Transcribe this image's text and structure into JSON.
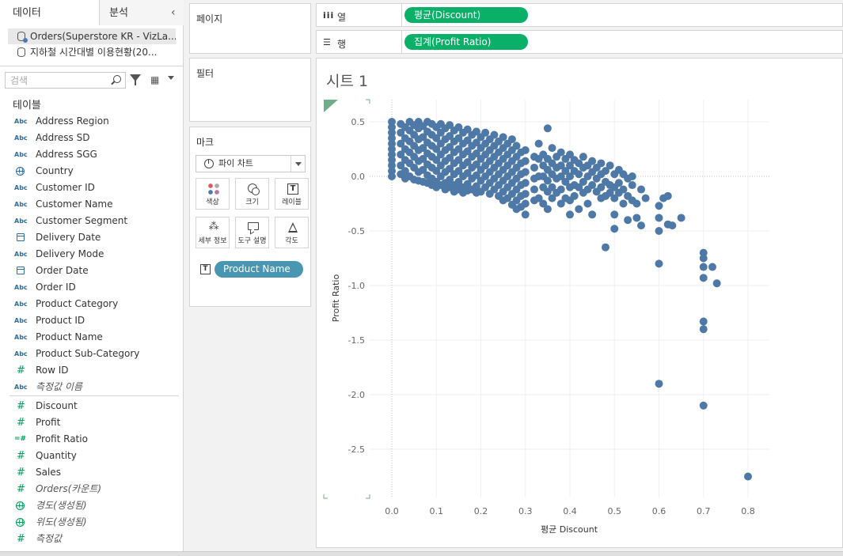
{
  "data_pane": {
    "tab_data": "데이터",
    "tab_analysis": "분석",
    "sources": [
      {
        "name": "Orders(Superstore KR - VizLa..."
      },
      {
        "name": "지하철 시간대별 이용현황(20..."
      }
    ],
    "search_placeholder": "검색",
    "table_title": "테이블",
    "fields": [
      {
        "type": "Abc",
        "name": "Address Region"
      },
      {
        "type": "Abc",
        "name": "Address SD"
      },
      {
        "type": "Abc",
        "name": "Address SGG"
      },
      {
        "type": "globe",
        "name": "Country"
      },
      {
        "type": "Abc",
        "name": "Customer ID"
      },
      {
        "type": "Abc",
        "name": "Customer Name"
      },
      {
        "type": "Abc",
        "name": "Customer Segment"
      },
      {
        "type": "date",
        "name": "Delivery Date"
      },
      {
        "type": "Abc",
        "name": "Delivery Mode"
      },
      {
        "type": "date",
        "name": "Order Date"
      },
      {
        "type": "Abc",
        "name": "Order ID"
      },
      {
        "type": "Abc",
        "name": "Product Category"
      },
      {
        "type": "Abc",
        "name": "Product ID"
      },
      {
        "type": "Abc",
        "name": "Product Name"
      },
      {
        "type": "Abc",
        "name": "Product Sub-Category"
      },
      {
        "type": "#",
        "name": "Row ID"
      },
      {
        "type": "Abc",
        "name": "측정값 이름",
        "italic": true
      },
      {
        "type": "#",
        "name": "Discount"
      },
      {
        "type": "#",
        "name": "Profit"
      },
      {
        "type": "calc",
        "name": "Profit Ratio"
      },
      {
        "type": "#",
        "name": "Quantity"
      },
      {
        "type": "#",
        "name": "Sales"
      },
      {
        "type": "#",
        "name": "Orders(카운트)",
        "italic": true
      },
      {
        "type": "globe-green",
        "name": "경도(생성됨)",
        "italic": true
      },
      {
        "type": "globe-green",
        "name": "위도(생성됨)",
        "italic": true
      },
      {
        "type": "#",
        "name": "측정값",
        "italic": true
      }
    ]
  },
  "pages_title": "페이지",
  "filters_title": "필터",
  "marks": {
    "title": "마크",
    "mark_type": "파이 차트",
    "buttons": [
      "색상",
      "크기",
      "레이블",
      "세부 정보",
      "도구 설명",
      "각도"
    ],
    "pill_label": "Product Name"
  },
  "columns_shelf": {
    "label": "열",
    "pill": "평균(Discount)"
  },
  "rows_shelf": {
    "label": "행",
    "pill": "집계(Profit Ratio)"
  },
  "sheet_title": "시트 1",
  "colors": {
    "point": "#4e79a7",
    "shelf_pill": "#0ab068",
    "mark_pill": "#4996b2"
  },
  "chart_data": {
    "type": "scatter",
    "title": "",
    "xlabel": "평균 Discount",
    "ylabel": "Profit Ratio",
    "xlim": [
      -0.03,
      0.85
    ],
    "ylim": [
      -2.95,
      0.55
    ],
    "xticks": [
      "0.0",
      "0.1",
      "0.2",
      "0.3",
      "0.4",
      "0.5",
      "0.6",
      "0.7",
      "0.8"
    ],
    "yticks": [
      "0.5",
      "0.0",
      "-0.5",
      "-1.0",
      "-1.5",
      "-2.0",
      "-2.5"
    ],
    "xtick_values": [
      0,
      0.1,
      0.2,
      0.3,
      0.4,
      0.5,
      0.6,
      0.7,
      0.8
    ],
    "ytick_values": [
      0.5,
      0,
      -0.5,
      -1.0,
      -1.5,
      -2.0,
      -2.5
    ],
    "points": [
      [
        0.0,
        0.5
      ],
      [
        0.0,
        0.45
      ],
      [
        0.0,
        0.4
      ],
      [
        0.0,
        0.35
      ],
      [
        0.0,
        0.3
      ],
      [
        0.0,
        0.25
      ],
      [
        0.0,
        0.2
      ],
      [
        0.0,
        0.15
      ],
      [
        0.0,
        0.1
      ],
      [
        0.0,
        0.05
      ],
      [
        0.0,
        0.0
      ],
      [
        0.02,
        0.48
      ],
      [
        0.02,
        0.4
      ],
      [
        0.02,
        0.3
      ],
      [
        0.02,
        0.2
      ],
      [
        0.02,
        0.1
      ],
      [
        0.02,
        0.02
      ],
      [
        0.03,
        0.45
      ],
      [
        0.03,
        0.35
      ],
      [
        0.03,
        0.25
      ],
      [
        0.03,
        0.15
      ],
      [
        0.03,
        0.05
      ],
      [
        0.03,
        -0.02
      ],
      [
        0.04,
        0.5
      ],
      [
        0.04,
        0.42
      ],
      [
        0.04,
        0.32
      ],
      [
        0.04,
        0.22
      ],
      [
        0.04,
        0.12
      ],
      [
        0.04,
        0.0
      ],
      [
        0.05,
        0.47
      ],
      [
        0.05,
        0.38
      ],
      [
        0.05,
        0.28
      ],
      [
        0.05,
        0.18
      ],
      [
        0.05,
        0.08
      ],
      [
        0.05,
        -0.03
      ],
      [
        0.06,
        0.5
      ],
      [
        0.06,
        0.44
      ],
      [
        0.06,
        0.34
      ],
      [
        0.06,
        0.24
      ],
      [
        0.06,
        0.14
      ],
      [
        0.06,
        0.04
      ],
      [
        0.06,
        -0.04
      ],
      [
        0.07,
        0.46
      ],
      [
        0.07,
        0.36
      ],
      [
        0.07,
        0.26
      ],
      [
        0.07,
        0.16
      ],
      [
        0.07,
        0.06
      ],
      [
        0.07,
        -0.05
      ],
      [
        0.08,
        0.5
      ],
      [
        0.08,
        0.41
      ],
      [
        0.08,
        0.31
      ],
      [
        0.08,
        0.21
      ],
      [
        0.08,
        0.11
      ],
      [
        0.08,
        0.01
      ],
      [
        0.08,
        -0.06
      ],
      [
        0.09,
        0.48
      ],
      [
        0.09,
        0.38
      ],
      [
        0.09,
        0.28
      ],
      [
        0.09,
        0.18
      ],
      [
        0.09,
        0.08
      ],
      [
        0.09,
        -0.02
      ],
      [
        0.09,
        -0.08
      ],
      [
        0.1,
        0.45
      ],
      [
        0.1,
        0.35
      ],
      [
        0.1,
        0.25
      ],
      [
        0.1,
        0.15
      ],
      [
        0.1,
        0.05
      ],
      [
        0.1,
        -0.05
      ],
      [
        0.1,
        -0.1
      ],
      [
        0.11,
        0.48
      ],
      [
        0.11,
        0.4
      ],
      [
        0.11,
        0.3
      ],
      [
        0.11,
        0.2
      ],
      [
        0.11,
        0.1
      ],
      [
        0.11,
        0.0
      ],
      [
        0.11,
        -0.08
      ],
      [
        0.12,
        0.44
      ],
      [
        0.12,
        0.34
      ],
      [
        0.12,
        0.24
      ],
      [
        0.12,
        0.14
      ],
      [
        0.12,
        0.04
      ],
      [
        0.12,
        -0.06
      ],
      [
        0.12,
        -0.12
      ],
      [
        0.13,
        0.47
      ],
      [
        0.13,
        0.37
      ],
      [
        0.13,
        0.27
      ],
      [
        0.13,
        0.17
      ],
      [
        0.13,
        0.07
      ],
      [
        0.13,
        -0.03
      ],
      [
        0.13,
        -0.1
      ],
      [
        0.14,
        0.42
      ],
      [
        0.14,
        0.32
      ],
      [
        0.14,
        0.22
      ],
      [
        0.14,
        0.12
      ],
      [
        0.14,
        0.02
      ],
      [
        0.14,
        -0.08
      ],
      [
        0.14,
        -0.14
      ],
      [
        0.15,
        0.45
      ],
      [
        0.15,
        0.35
      ],
      [
        0.15,
        0.25
      ],
      [
        0.15,
        0.15
      ],
      [
        0.15,
        0.05
      ],
      [
        0.15,
        -0.05
      ],
      [
        0.15,
        -0.12
      ],
      [
        0.16,
        0.4
      ],
      [
        0.16,
        0.3
      ],
      [
        0.16,
        0.2
      ],
      [
        0.16,
        0.1
      ],
      [
        0.16,
        0.0
      ],
      [
        0.16,
        -0.1
      ],
      [
        0.16,
        -0.15
      ],
      [
        0.17,
        0.43
      ],
      [
        0.17,
        0.33
      ],
      [
        0.17,
        0.23
      ],
      [
        0.17,
        0.13
      ],
      [
        0.17,
        0.03
      ],
      [
        0.17,
        -0.07
      ],
      [
        0.17,
        -0.13
      ],
      [
        0.18,
        0.38
      ],
      [
        0.18,
        0.28
      ],
      [
        0.18,
        0.18
      ],
      [
        0.18,
        0.08
      ],
      [
        0.18,
        -0.02
      ],
      [
        0.18,
        -0.12
      ],
      [
        0.19,
        0.41
      ],
      [
        0.19,
        0.31
      ],
      [
        0.19,
        0.21
      ],
      [
        0.19,
        0.11
      ],
      [
        0.19,
        0.01
      ],
      [
        0.19,
        -0.09
      ],
      [
        0.19,
        -0.15
      ],
      [
        0.2,
        0.36
      ],
      [
        0.2,
        0.26
      ],
      [
        0.2,
        0.16
      ],
      [
        0.2,
        0.06
      ],
      [
        0.2,
        -0.04
      ],
      [
        0.2,
        -0.14
      ],
      [
        0.21,
        0.4
      ],
      [
        0.21,
        0.3
      ],
      [
        0.21,
        0.2
      ],
      [
        0.21,
        0.1
      ],
      [
        0.21,
        0.0
      ],
      [
        0.21,
        -0.1
      ],
      [
        0.22,
        0.34
      ],
      [
        0.22,
        0.24
      ],
      [
        0.22,
        0.14
      ],
      [
        0.22,
        0.04
      ],
      [
        0.22,
        -0.06
      ],
      [
        0.22,
        -0.16
      ],
      [
        0.23,
        0.38
      ],
      [
        0.23,
        0.28
      ],
      [
        0.23,
        0.18
      ],
      [
        0.23,
        0.08
      ],
      [
        0.23,
        -0.02
      ],
      [
        0.23,
        -0.12
      ],
      [
        0.24,
        0.32
      ],
      [
        0.24,
        0.22
      ],
      [
        0.24,
        0.12
      ],
      [
        0.24,
        0.02
      ],
      [
        0.24,
        -0.08
      ],
      [
        0.24,
        -0.18
      ],
      [
        0.25,
        0.36
      ],
      [
        0.25,
        0.26
      ],
      [
        0.25,
        0.16
      ],
      [
        0.25,
        0.06
      ],
      [
        0.25,
        -0.04
      ],
      [
        0.25,
        -0.14
      ],
      [
        0.25,
        -0.22
      ],
      [
        0.26,
        0.3
      ],
      [
        0.26,
        0.2
      ],
      [
        0.26,
        0.1
      ],
      [
        0.26,
        0.0
      ],
      [
        0.26,
        -0.1
      ],
      [
        0.26,
        -0.2
      ],
      [
        0.27,
        0.34
      ],
      [
        0.27,
        0.24
      ],
      [
        0.27,
        0.14
      ],
      [
        0.27,
        0.04
      ],
      [
        0.27,
        -0.06
      ],
      [
        0.27,
        -0.16
      ],
      [
        0.27,
        -0.26
      ],
      [
        0.28,
        0.28
      ],
      [
        0.28,
        0.18
      ],
      [
        0.28,
        0.08
      ],
      [
        0.28,
        -0.02
      ],
      [
        0.28,
        -0.12
      ],
      [
        0.28,
        -0.22
      ],
      [
        0.28,
        -0.3
      ],
      [
        0.29,
        0.22
      ],
      [
        0.29,
        0.12
      ],
      [
        0.29,
        0.02
      ],
      [
        0.29,
        -0.08
      ],
      [
        0.29,
        -0.18
      ],
      [
        0.29,
        -0.28
      ],
      [
        0.3,
        0.24
      ],
      [
        0.3,
        0.14
      ],
      [
        0.3,
        0.04
      ],
      [
        0.3,
        -0.06
      ],
      [
        0.3,
        -0.16
      ],
      [
        0.3,
        -0.25
      ],
      [
        0.3,
        -0.35
      ],
      [
        0.32,
        0.18
      ],
      [
        0.32,
        0.08
      ],
      [
        0.32,
        -0.02
      ],
      [
        0.32,
        -0.12
      ],
      [
        0.32,
        -0.22
      ],
      [
        0.33,
        0.3
      ],
      [
        0.33,
        0.16
      ],
      [
        0.33,
        0.0
      ],
      [
        0.33,
        -0.2
      ],
      [
        0.34,
        0.2
      ],
      [
        0.34,
        0.1
      ],
      [
        0.34,
        0.0
      ],
      [
        0.34,
        -0.1
      ],
      [
        0.34,
        -0.25
      ],
      [
        0.35,
        0.16
      ],
      [
        0.35,
        0.06
      ],
      [
        0.35,
        -0.04
      ],
      [
        0.35,
        -0.14
      ],
      [
        0.35,
        -0.3
      ],
      [
        0.35,
        0.44
      ],
      [
        0.36,
        0.26
      ],
      [
        0.36,
        0.12
      ],
      [
        0.36,
        0.02
      ],
      [
        0.36,
        -0.1
      ],
      [
        0.36,
        -0.2
      ],
      [
        0.37,
        0.18
      ],
      [
        0.37,
        0.08
      ],
      [
        0.37,
        -0.02
      ],
      [
        0.37,
        -0.15
      ],
      [
        0.38,
        0.22
      ],
      [
        0.38,
        0.1
      ],
      [
        0.38,
        0.0
      ],
      [
        0.38,
        -0.12
      ],
      [
        0.38,
        -0.25
      ],
      [
        0.39,
        0.16
      ],
      [
        0.39,
        0.05
      ],
      [
        0.39,
        -0.05
      ],
      [
        0.39,
        -0.2
      ],
      [
        0.4,
        0.2
      ],
      [
        0.4,
        0.1
      ],
      [
        0.4,
        0.0
      ],
      [
        0.4,
        -0.1
      ],
      [
        0.4,
        -0.22
      ],
      [
        0.4,
        -0.35
      ],
      [
        0.41,
        0.15
      ],
      [
        0.41,
        0.05
      ],
      [
        0.41,
        -0.08
      ],
      [
        0.41,
        -0.18
      ],
      [
        0.42,
        0.12
      ],
      [
        0.42,
        0.02
      ],
      [
        0.42,
        -0.1
      ],
      [
        0.42,
        -0.3
      ],
      [
        0.43,
        0.18
      ],
      [
        0.43,
        0.08
      ],
      [
        0.43,
        -0.05
      ],
      [
        0.43,
        -0.15
      ],
      [
        0.44,
        0.1
      ],
      [
        0.44,
        0.0
      ],
      [
        0.44,
        -0.12
      ],
      [
        0.44,
        -0.25
      ],
      [
        0.45,
        0.14
      ],
      [
        0.45,
        0.04
      ],
      [
        0.45,
        -0.08
      ],
      [
        0.45,
        -0.35
      ],
      [
        0.46,
        0.08
      ],
      [
        0.46,
        -0.02
      ],
      [
        0.46,
        -0.14
      ],
      [
        0.47,
        0.12
      ],
      [
        0.47,
        0.02
      ],
      [
        0.47,
        -0.1
      ],
      [
        0.47,
        -0.2
      ],
      [
        0.48,
        0.05
      ],
      [
        0.48,
        -0.05
      ],
      [
        0.48,
        -0.18
      ],
      [
        0.48,
        -0.65
      ],
      [
        0.49,
        0.1
      ],
      [
        0.49,
        -0.08
      ],
      [
        0.49,
        -0.15
      ],
      [
        0.5,
        0.02
      ],
      [
        0.5,
        -0.1
      ],
      [
        0.5,
        -0.2
      ],
      [
        0.5,
        -0.35
      ],
      [
        0.5,
        -0.48
      ],
      [
        0.51,
        0.06
      ],
      [
        0.51,
        -0.06
      ],
      [
        0.51,
        -0.15
      ],
      [
        0.52,
        0.02
      ],
      [
        0.52,
        -0.12
      ],
      [
        0.52,
        -0.25
      ],
      [
        0.53,
        -0.02
      ],
      [
        0.53,
        -0.18
      ],
      [
        0.53,
        -0.4
      ],
      [
        0.54,
        0.0
      ],
      [
        0.54,
        -0.08
      ],
      [
        0.54,
        -0.22
      ],
      [
        0.55,
        -0.25
      ],
      [
        0.55,
        -0.38
      ],
      [
        0.56,
        -0.12
      ],
      [
        0.56,
        -0.45
      ],
      [
        0.57,
        -0.2
      ],
      [
        0.6,
        -0.27
      ],
      [
        0.6,
        -0.38
      ],
      [
        0.6,
        -0.5
      ],
      [
        0.6,
        -0.8
      ],
      [
        0.6,
        -1.9
      ],
      [
        0.61,
        -0.2
      ],
      [
        0.62,
        -0.18
      ],
      [
        0.62,
        -0.44
      ],
      [
        0.63,
        -0.45
      ],
      [
        0.65,
        -0.38
      ],
      [
        0.7,
        -0.7
      ],
      [
        0.7,
        -0.75
      ],
      [
        0.7,
        -0.83
      ],
      [
        0.7,
        -0.93
      ],
      [
        0.7,
        -1.33
      ],
      [
        0.7,
        -1.4
      ],
      [
        0.7,
        -2.1
      ],
      [
        0.72,
        -0.83
      ],
      [
        0.73,
        -0.98
      ],
      [
        0.8,
        -2.75
      ]
    ]
  }
}
